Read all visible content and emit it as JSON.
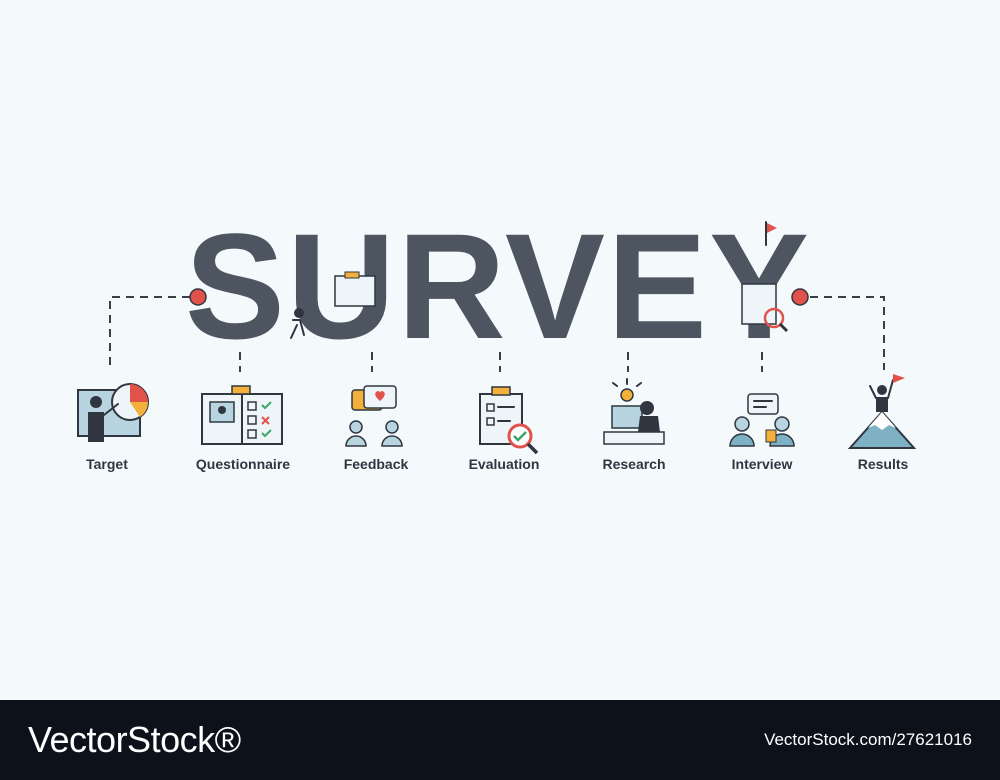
{
  "headline": "SURVEY",
  "steps": [
    {
      "label": "Target",
      "icon": "presentation-chart-icon"
    },
    {
      "label": "Questionnaire",
      "icon": "questionnaire-clipboard-icon"
    },
    {
      "label": "Feedback",
      "icon": "feedback-chat-icon"
    },
    {
      "label": "Evaluation",
      "icon": "evaluation-checklist-icon"
    },
    {
      "label": "Research",
      "icon": "research-desk-icon"
    },
    {
      "label": "Interview",
      "icon": "interview-people-icon"
    },
    {
      "label": "Results",
      "icon": "mountain-flag-icon"
    }
  ],
  "colors": {
    "background": "#f4f9fb",
    "headline": "#4d5561",
    "accent_red": "#e0524a",
    "accent_blue": "#b7d4e0",
    "accent_orange": "#f3b13c"
  },
  "footer": {
    "brand": "VectorStock®",
    "url": "VectorStock.com/27621016"
  }
}
